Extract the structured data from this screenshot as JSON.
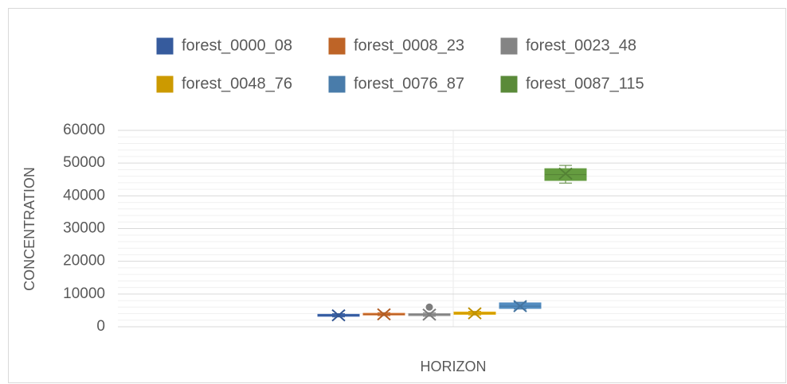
{
  "chart_data": {
    "type": "box",
    "xlabel": "HORIZON",
    "ylabel": "CONCENTRATION",
    "ylim": [
      0,
      60000
    ],
    "yticks": [
      0,
      10000,
      20000,
      30000,
      40000,
      50000,
      60000
    ],
    "minor_yticks": [
      2000,
      4000,
      6000,
      8000,
      12000,
      14000,
      16000,
      18000,
      22000,
      24000,
      26000,
      28000,
      32000,
      34000,
      36000,
      38000,
      42000,
      44000,
      46000,
      48000,
      52000,
      54000,
      56000,
      58000
    ],
    "grid": true,
    "legend": "top",
    "series": [
      {
        "name": "forest_0000_08",
        "color": "#4472c4",
        "min": 3000,
        "q1": 3200,
        "median": 3500,
        "q3": 3800,
        "max": 4000,
        "mean": 3500,
        "outliers": []
      },
      {
        "name": "forest_0008_23",
        "color": "#ed7d31",
        "min": 3400,
        "q1": 3600,
        "median": 3800,
        "q3": 4100,
        "max": 4300,
        "mean": 3800,
        "outliers": []
      },
      {
        "name": "forest_0023_48",
        "color": "#a5a5a5",
        "min": 3200,
        "q1": 3400,
        "median": 3700,
        "q3": 4000,
        "max": 4300,
        "mean": 3700,
        "outliers": [
          6000
        ]
      },
      {
        "name": "forest_0048_76",
        "color": "#ffc000",
        "min": 3600,
        "q1": 3800,
        "median": 4100,
        "q3": 4500,
        "max": 4700,
        "mean": 4100,
        "outliers": []
      },
      {
        "name": "forest_0076_87",
        "color": "#5b9bd5",
        "min": 5400,
        "q1": 5600,
        "median": 6300,
        "q3": 7300,
        "max": 7500,
        "mean": 6300,
        "outliers": []
      },
      {
        "name": "forest_0087_115",
        "color": "#70ad47",
        "min": 43900,
        "q1": 44700,
        "median": 46500,
        "q3": 48300,
        "max": 49300,
        "mean": 46800,
        "outliers": []
      }
    ]
  }
}
